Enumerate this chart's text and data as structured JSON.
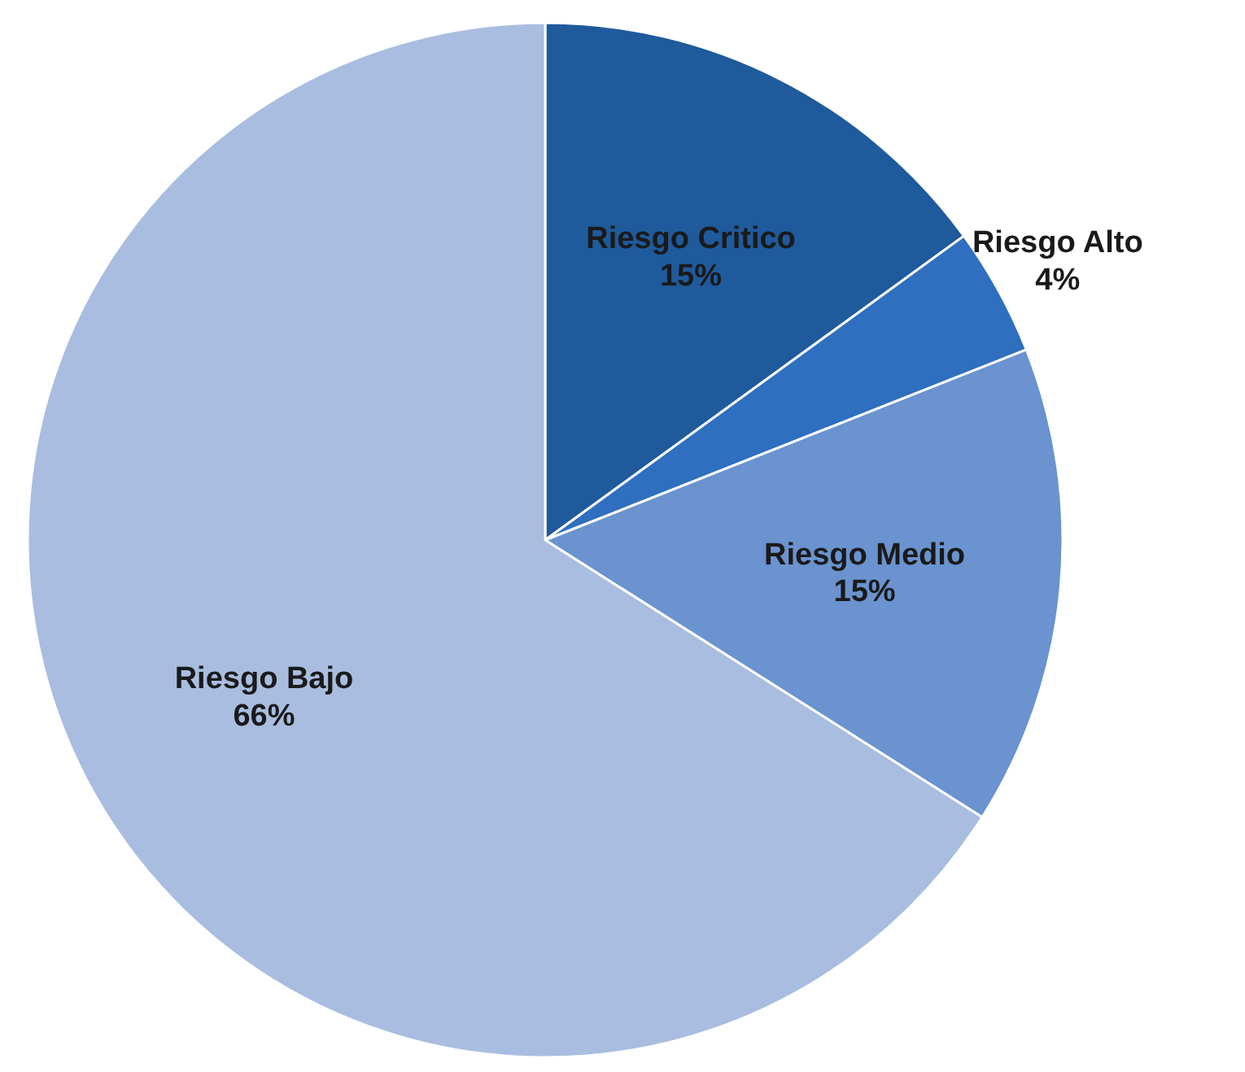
{
  "chart_data": {
    "type": "pie",
    "categories": [
      "Riesgo Critico",
      "Riesgo Alto",
      "Riesgo Medio",
      "Riesgo Bajo"
    ],
    "values": [
      15,
      4,
      15,
      66
    ],
    "colors": [
      "#1f5a9c",
      "#2e6fbf",
      "#6a93cf",
      "#a9bde0"
    ],
    "value_labels": [
      "15%",
      "4%",
      "15%",
      "66%"
    ]
  }
}
